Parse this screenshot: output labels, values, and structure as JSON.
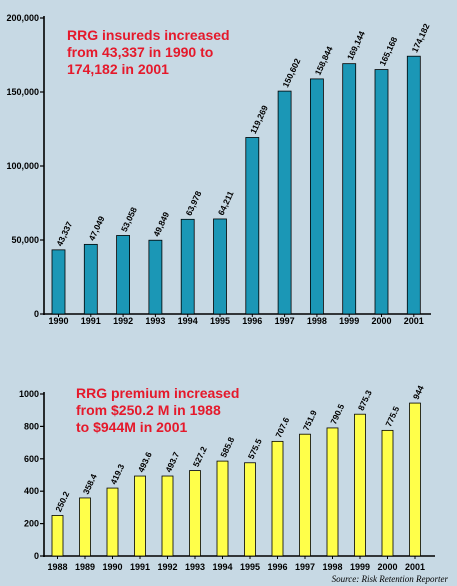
{
  "chart_data": [
    {
      "type": "bar",
      "title_lines": [
        "RRG insureds increased",
        "from 43,337 in 1990 to",
        "174,182 in 2001"
      ],
      "categories": [
        "1990",
        "1991",
        "1992",
        "1993",
        "1994",
        "1995",
        "1996",
        "1997",
        "1998",
        "1999",
        "2000",
        "2001"
      ],
      "values": [
        43337,
        47049,
        53058,
        49849,
        63978,
        64211,
        119269,
        150602,
        158844,
        169144,
        165168,
        174182
      ],
      "value_labels": [
        "43,337",
        "47,049",
        "53,058",
        "49,849",
        "63,978",
        "64,211",
        "119,269",
        "150,602",
        "158,844",
        "169,144",
        "165,168",
        "174,182"
      ],
      "yticks": [
        0,
        50000,
        100000,
        150000,
        200000
      ],
      "ytick_labels": [
        "0",
        "50,000",
        "100,000",
        "150,000",
        "200,000"
      ],
      "ylim": [
        0,
        200000
      ],
      "bar_color": "#1b97b6",
      "grid": false
    },
    {
      "type": "bar",
      "title_lines": [
        "RRG premium increased",
        "from $250.2 M in 1988",
        "to $944M in 2001"
      ],
      "categories": [
        "1988",
        "1989",
        "1990",
        "1991",
        "1992",
        "1993",
        "1994",
        "1995",
        "1996",
        "1997",
        "1998",
        "1999",
        "2000",
        "2001"
      ],
      "values": [
        250.2,
        358.4,
        419.3,
        493.6,
        493.7,
        527.2,
        585.8,
        575.5,
        707.6,
        751.9,
        790.5,
        875.3,
        775.5,
        944
      ],
      "value_labels": [
        "250.2",
        "358.4",
        "419.3",
        "493.6",
        "493.7",
        "527.2",
        "585.8",
        "575.5",
        "707.6",
        "751.9",
        "790.5",
        "875.3",
        "775.5",
        "944"
      ],
      "yticks": [
        0,
        200,
        400,
        600,
        800,
        1000
      ],
      "ytick_labels": [
        "0",
        "200",
        "400",
        "600",
        "800",
        "1000"
      ],
      "ylim": [
        0,
        1000
      ],
      "bar_color": "#ffff4a",
      "grid": false
    }
  ],
  "source": "Source: Risk Retention Reporter",
  "colors": {
    "background": "#c7d9e4",
    "title": "#e5192b"
  }
}
